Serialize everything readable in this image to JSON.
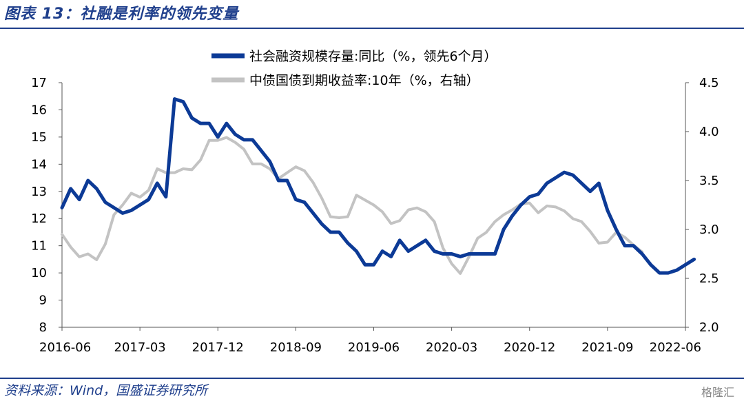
{
  "header": {
    "title": "图表 13：社融是利率的领先变量"
  },
  "footer": {
    "source": "资料来源：Wind，国盛证券研究所",
    "watermark": "格隆汇"
  },
  "colors": {
    "social_financing": "#0c3a96",
    "bond_yield": "#c3c3c3",
    "rule": "#1f3f8c"
  },
  "chart_data": {
    "type": "line",
    "x_tick_labels": [
      "2016-06",
      "2017-03",
      "2017-12",
      "2018-09",
      "2019-06",
      "2020-03",
      "2020-12",
      "2021-09",
      "2022-06"
    ],
    "left_axis": {
      "ylim": [
        8,
        17
      ],
      "ticks": [
        8,
        9,
        10,
        11,
        12,
        13,
        14,
        15,
        16,
        17
      ]
    },
    "right_axis": {
      "ylim": [
        2.0,
        4.5
      ],
      "ticks": [
        "2.0",
        "2.5",
        "3.0",
        "3.5",
        "4.0",
        "4.5"
      ]
    },
    "grid": false,
    "legend_position": "top-center",
    "series": [
      {
        "name": "社会融资规模存量:同比（%，领先6个月）",
        "axis": "left",
        "start": "2016-06",
        "values": [
          12.4,
          13.1,
          12.7,
          13.4,
          13.1,
          12.6,
          12.4,
          12.2,
          12.3,
          12.5,
          12.7,
          13.3,
          12.8,
          16.4,
          16.3,
          15.7,
          15.5,
          15.5,
          15.0,
          15.5,
          15.1,
          14.9,
          14.9,
          14.5,
          14.1,
          13.4,
          13.4,
          12.7,
          12.6,
          12.2,
          11.8,
          11.5,
          11.5,
          11.1,
          10.8,
          10.3,
          10.3,
          10.8,
          10.6,
          11.2,
          10.8,
          11.0,
          11.2,
          10.8,
          10.7,
          10.7,
          10.6,
          10.7,
          10.7,
          10.7,
          10.7,
          11.6,
          12.1,
          12.5,
          12.8,
          12.9,
          13.3,
          13.5,
          13.7,
          13.6,
          13.3,
          13.0,
          13.3,
          12.3,
          11.6,
          11.0,
          11.0,
          10.7,
          10.3,
          10.0,
          10.0,
          10.1,
          10.3,
          10.5
        ]
      },
      {
        "name": "中债国债到期收益率:10年（%，右轴）",
        "axis": "right",
        "start": "2016-06",
        "values": [
          2.95,
          2.82,
          2.72,
          2.75,
          2.69,
          2.85,
          3.15,
          3.25,
          3.37,
          3.33,
          3.4,
          3.62,
          3.58,
          3.58,
          3.62,
          3.61,
          3.71,
          3.91,
          3.91,
          3.94,
          3.89,
          3.82,
          3.67,
          3.67,
          3.62,
          3.52,
          3.58,
          3.64,
          3.6,
          3.48,
          3.32,
          3.13,
          3.12,
          3.13,
          3.35,
          3.3,
          3.25,
          3.18,
          3.06,
          3.09,
          3.2,
          3.22,
          3.18,
          3.08,
          2.81,
          2.65,
          2.55,
          2.72,
          2.91,
          2.97,
          3.08,
          3.15,
          3.2,
          3.26,
          3.27,
          3.17,
          3.24,
          3.23,
          3.19,
          3.11,
          3.08,
          2.98,
          2.86,
          2.87,
          2.97,
          2.92,
          2.84,
          2.77
        ]
      }
    ]
  }
}
